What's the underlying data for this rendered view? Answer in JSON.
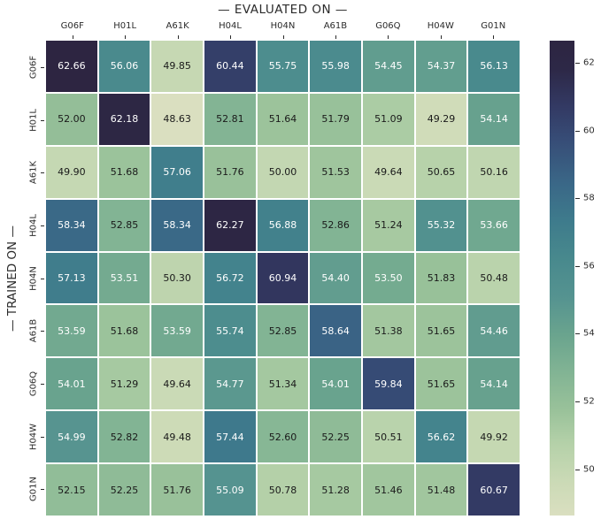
{
  "chart_data": {
    "type": "heatmap",
    "title": "— EVALUATED ON —",
    "ylabel": "— TRAINED ON —",
    "columns": [
      "G06F",
      "H01L",
      "A61K",
      "H04L",
      "H04N",
      "A61B",
      "G06Q",
      "H04W",
      "G01N"
    ],
    "rows": [
      "G06F",
      "H01L",
      "A61K",
      "H04L",
      "H04N",
      "A61B",
      "G06Q",
      "H04W",
      "G01N"
    ],
    "values": [
      [
        62.66,
        56.06,
        49.85,
        60.44,
        55.75,
        55.98,
        54.45,
        54.37,
        56.13
      ],
      [
        52.0,
        62.18,
        48.63,
        52.81,
        51.64,
        51.79,
        51.09,
        49.29,
        54.14
      ],
      [
        49.9,
        51.68,
        57.06,
        51.76,
        50.0,
        51.53,
        49.64,
        50.65,
        50.16
      ],
      [
        58.34,
        52.85,
        58.34,
        62.27,
        56.88,
        52.86,
        51.24,
        55.32,
        53.66
      ],
      [
        57.13,
        53.51,
        50.3,
        56.72,
        60.94,
        54.4,
        53.5,
        51.83,
        50.48
      ],
      [
        53.59,
        51.68,
        53.59,
        55.74,
        52.85,
        58.64,
        51.38,
        51.65,
        54.46
      ],
      [
        54.01,
        51.29,
        49.64,
        54.77,
        51.34,
        54.01,
        59.84,
        51.65,
        54.14
      ],
      [
        54.99,
        52.82,
        49.48,
        57.44,
        52.6,
        52.25,
        50.51,
        56.62,
        49.92
      ],
      [
        52.15,
        52.25,
        51.76,
        55.09,
        50.78,
        51.28,
        51.46,
        51.48,
        60.67
      ]
    ],
    "value_decimals": 2,
    "vmin": 48.63,
    "vmax": 62.66,
    "x_ticks_position": "top",
    "grid_gap_color": "#ffffff",
    "axis_text_color": "#2b2b2b",
    "colorbar": {
      "position": "right",
      "ticks": [
        62,
        60,
        58,
        56,
        54,
        52,
        50
      ]
    },
    "colormap": {
      "name": "mako-like",
      "stops": [
        {
          "t": 0.0,
          "color": "#dadfc0"
        },
        {
          "t": 0.07,
          "color": "#cbdab6"
        },
        {
          "t": 0.15,
          "color": "#b5d1a9"
        },
        {
          "t": 0.22,
          "color": "#9ac29a"
        },
        {
          "t": 0.3,
          "color": "#82b494"
        },
        {
          "t": 0.38,
          "color": "#6aa48e"
        },
        {
          "t": 0.46,
          "color": "#559390"
        },
        {
          "t": 0.54,
          "color": "#48898d"
        },
        {
          "t": 0.62,
          "color": "#3e7b8c"
        },
        {
          "t": 0.7,
          "color": "#3a6787"
        },
        {
          "t": 0.79,
          "color": "#374d77"
        },
        {
          "t": 0.86,
          "color": "#333a64"
        },
        {
          "t": 0.94,
          "color": "#2d2847"
        },
        {
          "t": 1.0,
          "color": "#2d2541"
        }
      ]
    },
    "text_colors": {
      "on_dark": "#ffffff",
      "on_light": "#1a1a1a",
      "white_text_min_value": 53.2
    }
  }
}
